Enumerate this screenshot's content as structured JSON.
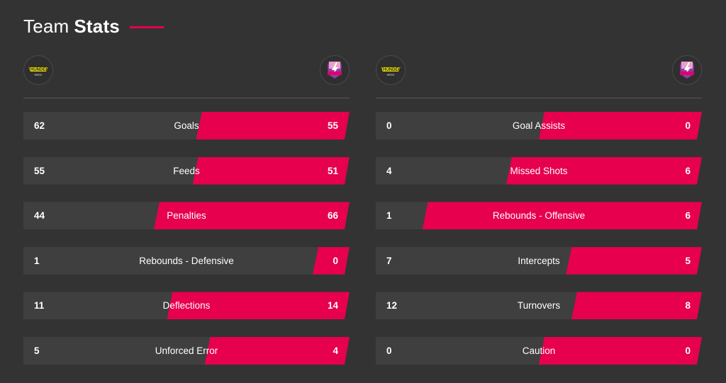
{
  "header": {
    "title_light": "Team",
    "title_bold": "Stats",
    "accent_color": "#e6004d"
  },
  "teams": {
    "home": {
      "logo_icon": "thunderbirds-logo-icon",
      "logo_text": "THUNDERBIRDS"
    },
    "away": {
      "logo_icon": "lightning-logo-icon",
      "logo_text": "LIGHTNING"
    }
  },
  "colors": {
    "background": "#333333",
    "row_bg": "#3f3f3f",
    "away_bar": "#e6004d"
  },
  "stats_left": [
    {
      "label": "Goals",
      "home": "62",
      "away": "55"
    },
    {
      "label": "Feeds",
      "home": "55",
      "away": "51"
    },
    {
      "label": "Penalties",
      "home": "44",
      "away": "66"
    },
    {
      "label": "Rebounds - Defensive",
      "home": "1",
      "away": "0"
    },
    {
      "label": "Deflections",
      "home": "11",
      "away": "14"
    },
    {
      "label": "Unforced Error",
      "home": "5",
      "away": "4"
    }
  ],
  "stats_right": [
    {
      "label": "Goal Assists",
      "home": "0",
      "away": "0"
    },
    {
      "label": "Missed Shots",
      "home": "4",
      "away": "6"
    },
    {
      "label": "Rebounds - Offensive",
      "home": "1",
      "away": "6"
    },
    {
      "label": "Intercepts",
      "home": "7",
      "away": "5"
    },
    {
      "label": "Turnovers",
      "home": "12",
      "away": "8"
    },
    {
      "label": "Caution",
      "home": "0",
      "away": "0"
    }
  ]
}
